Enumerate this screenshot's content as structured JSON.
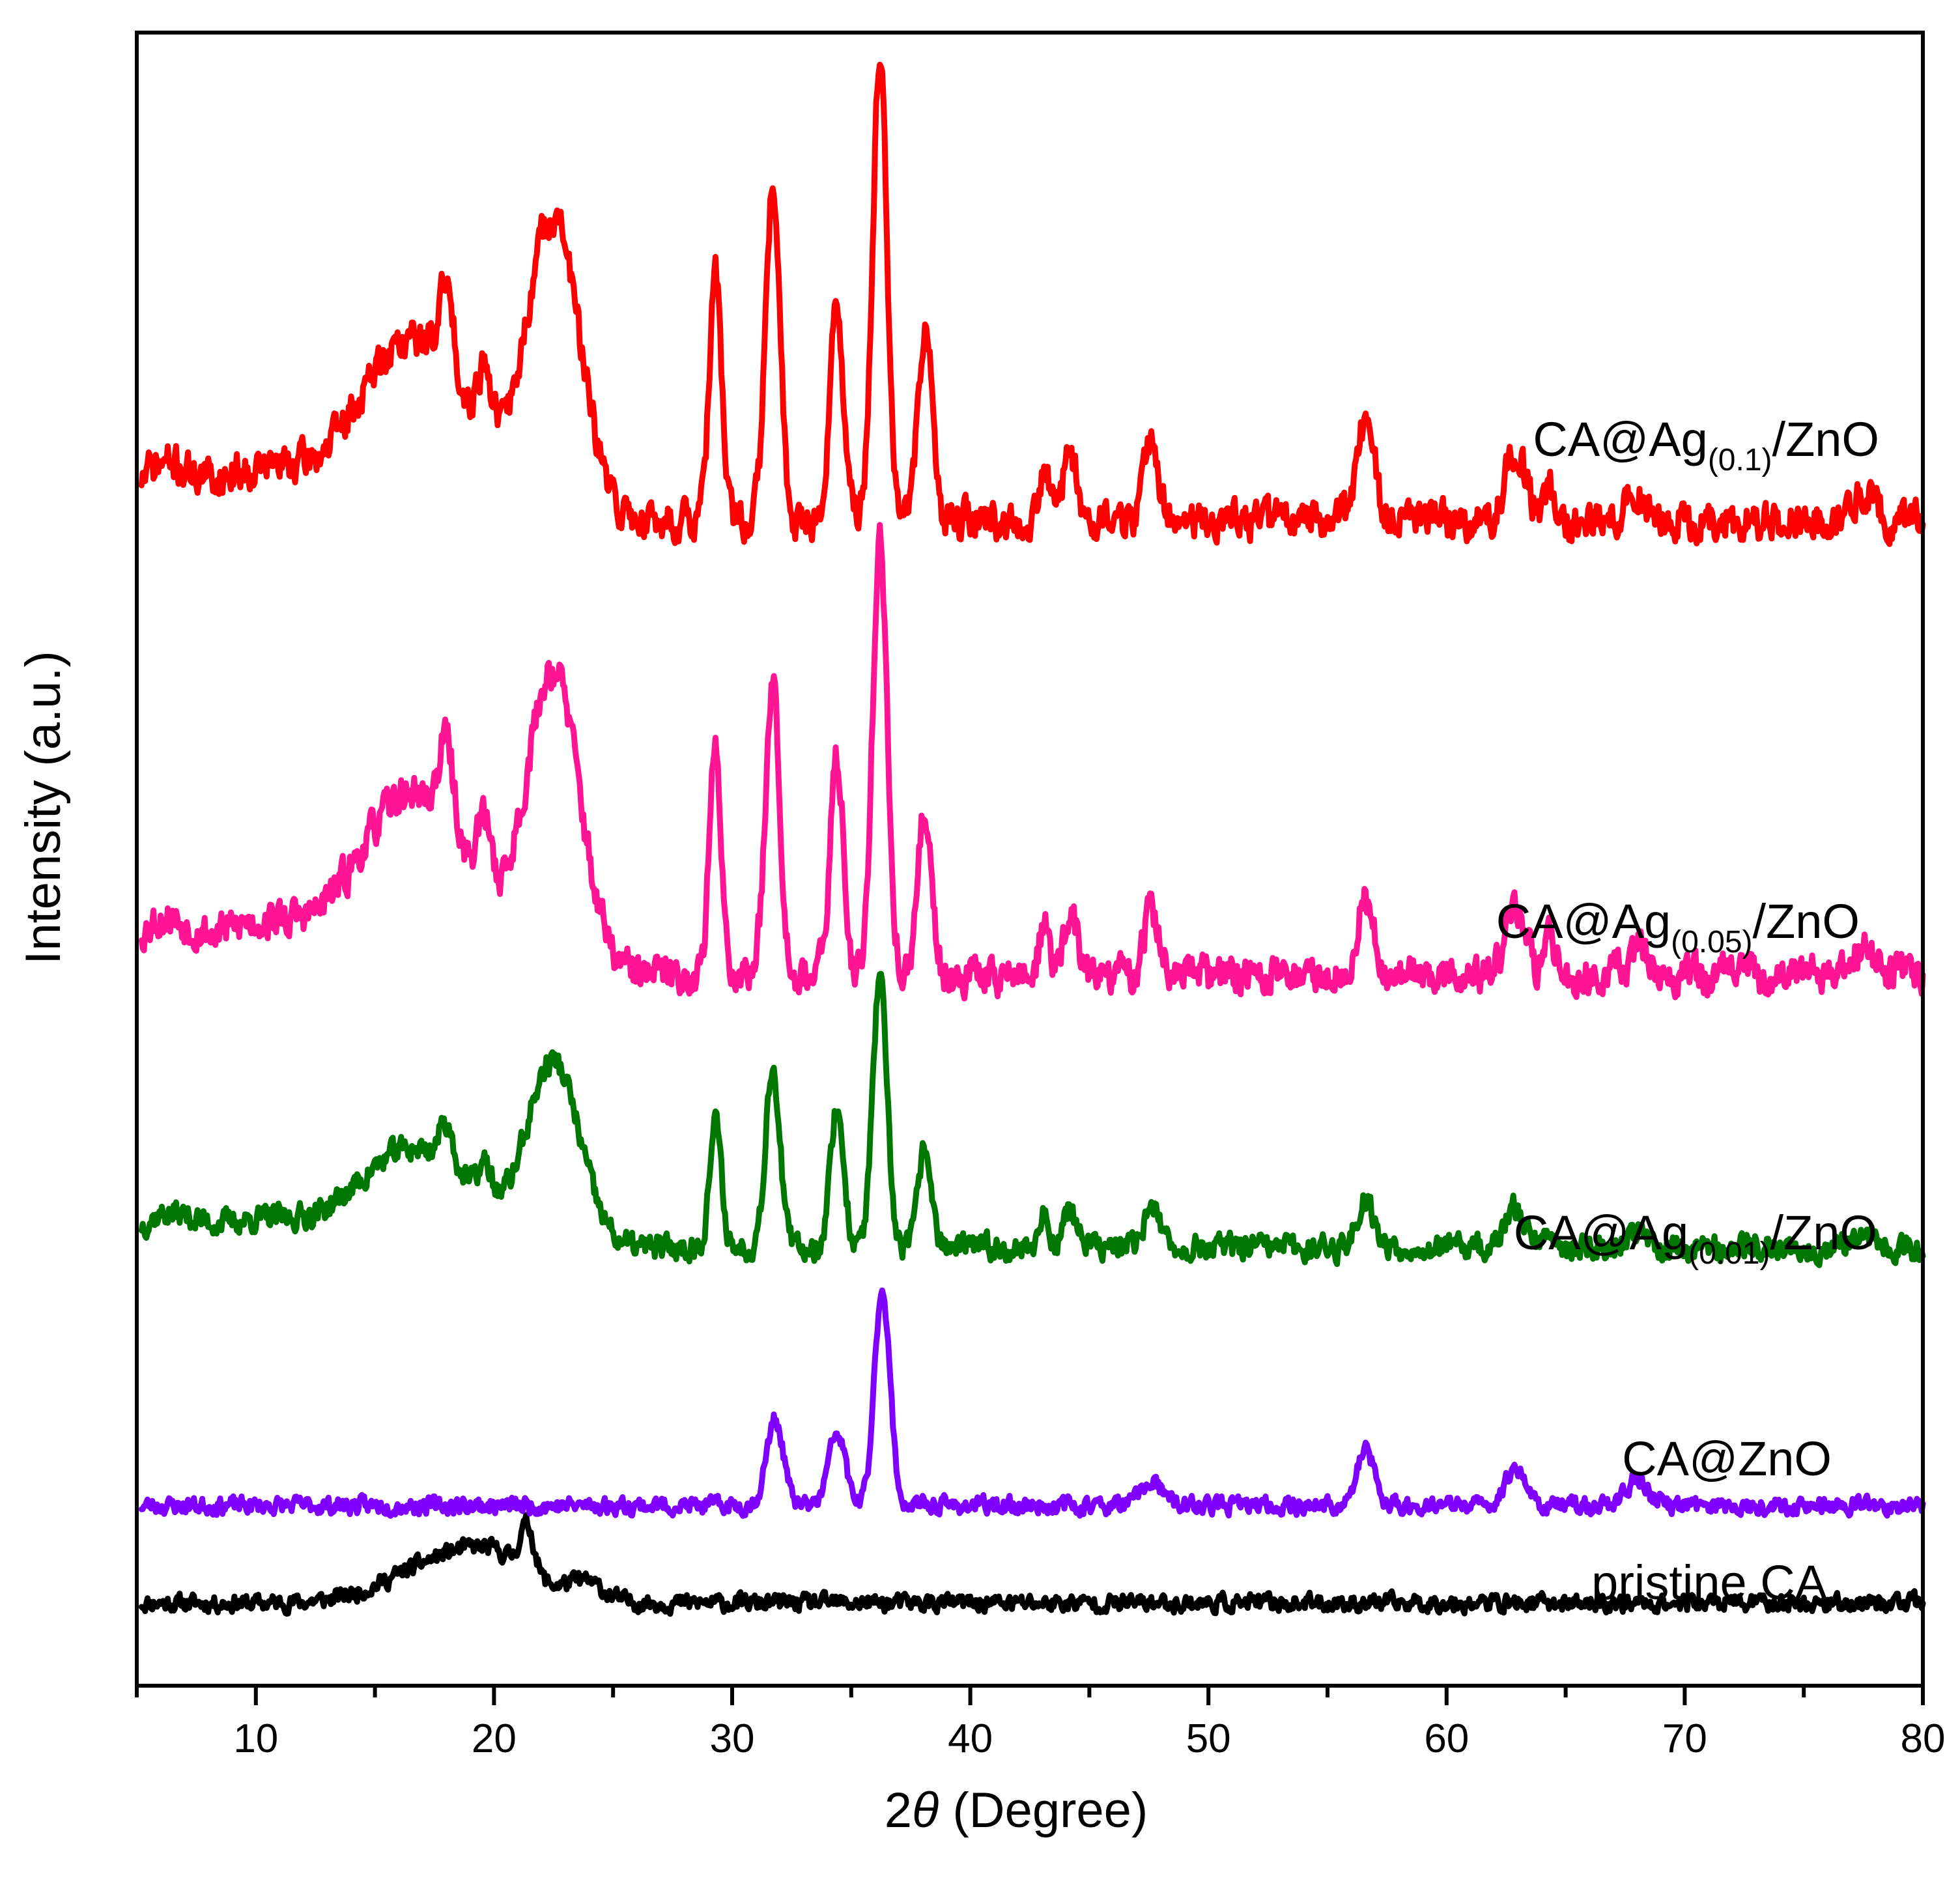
{
  "chart_data": {
    "type": "line",
    "title": "",
    "xlabel": {
      "prefix": "2",
      "symbol": "θ",
      "suffix": " (Degree)"
    },
    "ylabel": "Intensity (a.u.)",
    "xlim": [
      5,
      80
    ],
    "x_major_ticks": [
      10,
      20,
      30,
      40,
      50,
      60,
      70,
      80
    ],
    "x_minor_ticks": [
      5,
      15,
      25,
      35,
      45,
      55,
      65,
      75
    ],
    "x_tick_labels": [
      "10",
      "20",
      "30",
      "40",
      "50",
      "60",
      "70",
      "80"
    ],
    "y_ticks": [],
    "grid": false,
    "legend": "inline labels beside each trace",
    "peak_width_deg": 0.35,
    "series": [
      {
        "name": "pristine CA",
        "label_parts": [
          "pristine CA",
          "",
          ""
        ],
        "color": "#000000",
        "baseline": 0.05,
        "noise": 0.008,
        "seed": 11,
        "peaks": [
          [
            17.8,
            0.024,
            2.2
          ],
          [
            20.2,
            0.018,
            1.5
          ],
          [
            21.4,
            0.028,
            0.3
          ],
          [
            23.8,
            0.012,
            0.8
          ]
        ]
      },
      {
        "name": "CA@ZnO",
        "label_parts": [
          "CA@ZnO",
          "",
          ""
        ],
        "color": "#8000ff",
        "baseline": 0.109,
        "noise": 0.008,
        "seed": 23,
        "peaks": [
          [
            31.8,
            0.052,
            0.35
          ],
          [
            34.4,
            0.044,
            0.35
          ],
          [
            36.3,
            0.132,
            0.32
          ],
          [
            47.6,
            0.014,
            0.45
          ],
          [
            56.6,
            0.034,
            0.35
          ],
          [
            62.9,
            0.024,
            0.4
          ],
          [
            68.0,
            0.016,
            0.45
          ]
        ]
      },
      {
        "name": "CA@Ag(0.01)/ZnO",
        "label_parts": [
          "CA@Ag",
          "(0.01)",
          "/ZnO"
        ],
        "color": "#007700",
        "baseline": 0.265,
        "noise": 0.012,
        "seed": 37,
        "peaks": [
          [
            6.2,
            0.018,
            1.2
          ],
          [
            10.0,
            0.016,
            2.0
          ],
          [
            16.6,
            0.06,
            2.4
          ],
          [
            18.0,
            0.025,
            0.3
          ],
          [
            19.6,
            0.02,
            0.3
          ],
          [
            22.5,
            0.11,
            1.1
          ],
          [
            29.3,
            0.075,
            0.25
          ],
          [
            31.7,
            0.11,
            0.3
          ],
          [
            34.4,
            0.085,
            0.28
          ],
          [
            36.2,
            0.16,
            0.3
          ],
          [
            38.1,
            0.06,
            0.28
          ],
          [
            43.1,
            0.02,
            0.2
          ],
          [
            44.2,
            0.022,
            0.3
          ],
          [
            47.6,
            0.028,
            0.3
          ],
          [
            56.6,
            0.03,
            0.35
          ],
          [
            62.9,
            0.024,
            0.4
          ],
          [
            64.3,
            0.012,
            0.25
          ],
          [
            68.0,
            0.01,
            0.35
          ],
          [
            77.5,
            0.01,
            0.5
          ]
        ]
      },
      {
        "name": "CA@Ag(0.05)/ZnO",
        "label_parts": [
          "CA@Ag",
          "(0.05)",
          "/ZnO"
        ],
        "color": "#ff1493",
        "baseline": 0.43,
        "noise": 0.018,
        "seed": 53,
        "peaks": [
          [
            6.0,
            0.03,
            1.2
          ],
          [
            10.0,
            0.03,
            2.0
          ],
          [
            16.6,
            0.11,
            2.4
          ],
          [
            18.0,
            0.05,
            0.3
          ],
          [
            19.6,
            0.04,
            0.3
          ],
          [
            22.5,
            0.18,
            1.1
          ],
          [
            29.3,
            0.135,
            0.25
          ],
          [
            31.7,
            0.18,
            0.3
          ],
          [
            34.4,
            0.13,
            0.28
          ],
          [
            36.2,
            0.265,
            0.3
          ],
          [
            38.1,
            0.1,
            0.28
          ],
          [
            43.1,
            0.03,
            0.2
          ],
          [
            44.2,
            0.035,
            0.3
          ],
          [
            47.6,
            0.04,
            0.3
          ],
          [
            56.6,
            0.045,
            0.35
          ],
          [
            62.9,
            0.04,
            0.4
          ],
          [
            64.3,
            0.02,
            0.25
          ],
          [
            68.0,
            0.016,
            0.35
          ],
          [
            77.5,
            0.015,
            0.5
          ]
        ]
      },
      {
        "name": "CA@Ag(0.1)/ZnO",
        "label_parts": [
          "CA@Ag",
          "(0.1)",
          "/ZnO"
        ],
        "color": "#ff0000",
        "baseline": 0.705,
        "noise": 0.018,
        "seed": 71,
        "peaks": [
          [
            6.0,
            0.03,
            1.2
          ],
          [
            10.0,
            0.03,
            2.0
          ],
          [
            16.6,
            0.11,
            2.4
          ],
          [
            18.0,
            0.05,
            0.3
          ],
          [
            19.6,
            0.04,
            0.3
          ],
          [
            22.5,
            0.18,
            1.1
          ],
          [
            29.3,
            0.15,
            0.25
          ],
          [
            31.7,
            0.2,
            0.3
          ],
          [
            34.4,
            0.13,
            0.28
          ],
          [
            36.2,
            0.28,
            0.3
          ],
          [
            38.1,
            0.12,
            0.28
          ],
          [
            43.1,
            0.035,
            0.2
          ],
          [
            44.2,
            0.04,
            0.3
          ],
          [
            47.6,
            0.048,
            0.3
          ],
          [
            56.6,
            0.06,
            0.35
          ],
          [
            62.9,
            0.045,
            0.4
          ],
          [
            64.3,
            0.02,
            0.25
          ],
          [
            68.0,
            0.02,
            0.35
          ],
          [
            77.5,
            0.018,
            0.5
          ]
        ]
      }
    ]
  }
}
